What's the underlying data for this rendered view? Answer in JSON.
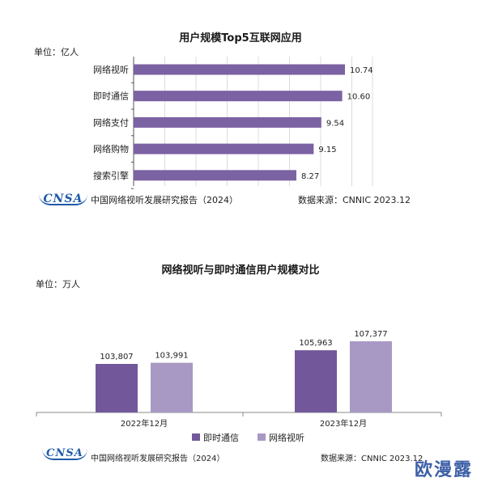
{
  "chart_data": [
    {
      "type": "bar",
      "orientation": "horizontal",
      "title": "用户规模Top5互联网应用",
      "unit_label": "单位：亿人",
      "categories": [
        "网络视听",
        "即时通信",
        "网络支付",
        "网络购物",
        "搜索引擎"
      ],
      "values": [
        10.74,
        10.6,
        9.54,
        9.15,
        8.27
      ],
      "value_labels": [
        "10.74",
        "10.60",
        "9.54",
        "9.15",
        "8.27"
      ],
      "bar_color": "#7b62a3",
      "grid": true
    },
    {
      "type": "bar",
      "title": "网络视听与即时通信用户规模对比",
      "unit_label": "单位：万人",
      "categories": [
        "2022年12月",
        "2023年12月"
      ],
      "series": [
        {
          "name": "即时通信",
          "values": [
            103807,
            105963
          ],
          "labels": [
            "103,807",
            "105,963"
          ],
          "color": "#72589a"
        },
        {
          "name": "网络视听",
          "values": [
            103991,
            107377
          ],
          "labels": [
            "103,991",
            "107,377"
          ],
          "color": "#a899c4"
        }
      ],
      "legend": "bottom",
      "grid": false
    }
  ],
  "footer": {
    "logo_text": "CNSA",
    "report_name_1": "中国网络视听发展研究报告（2024）",
    "source_1": "数据来源：CNNIC    2023.12",
    "report_name_2": "中国网络视听发展研究报告（2024）",
    "source_2": "数据来源：CNNIC  2023.12"
  },
  "watermark": "欧漫露"
}
